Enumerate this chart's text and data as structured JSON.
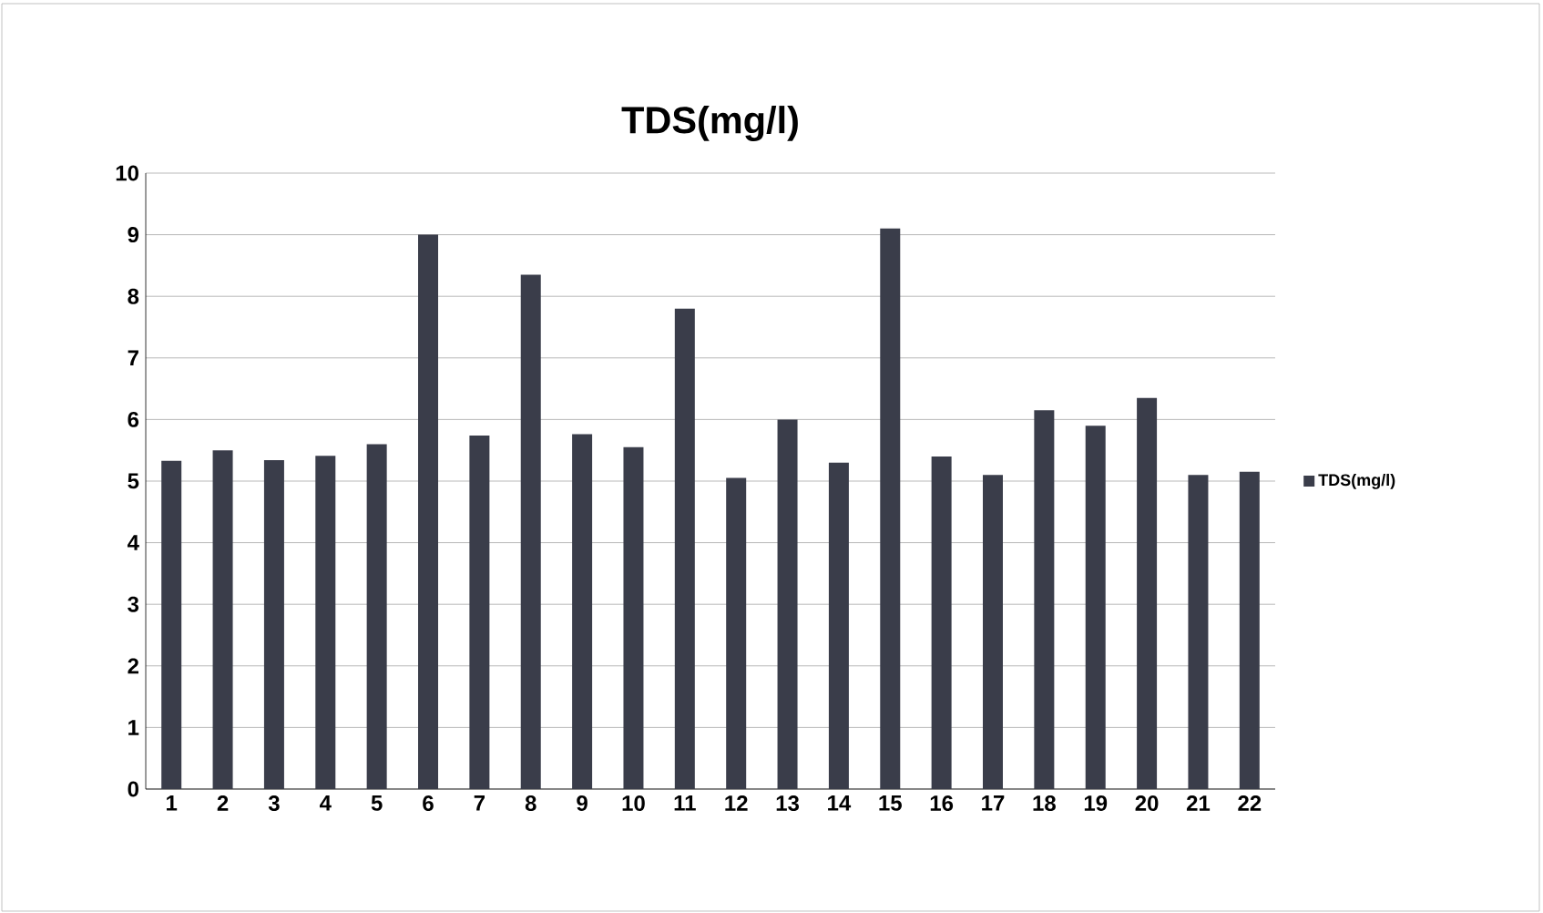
{
  "chart_data": {
    "type": "bar",
    "title": "TDS(mg/l)",
    "categories": [
      "1",
      "2",
      "3",
      "4",
      "5",
      "6",
      "7",
      "8",
      "9",
      "10",
      "11",
      "12",
      "13",
      "14",
      "15",
      "16",
      "17",
      "18",
      "19",
      "20",
      "21",
      "22"
    ],
    "series": [
      {
        "name": "TDS(mg/l)",
        "color": "#3a3d4a",
        "values": [
          5.33,
          5.5,
          5.34,
          5.41,
          5.6,
          9.0,
          5.74,
          8.35,
          5.76,
          5.55,
          7.8,
          5.05,
          6.0,
          5.3,
          9.1,
          5.4,
          5.1,
          6.15,
          5.9,
          6.35,
          5.1,
          5.15
        ]
      }
    ],
    "ylim": [
      0,
      10
    ],
    "yticks": [
      0,
      1,
      2,
      3,
      4,
      5,
      6,
      7,
      8,
      9,
      10
    ],
    "grid": "y",
    "legend": "right"
  }
}
